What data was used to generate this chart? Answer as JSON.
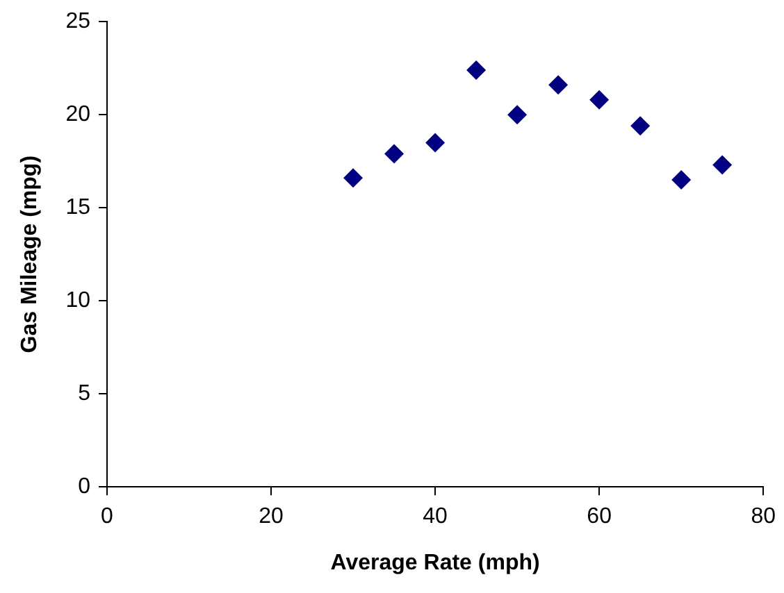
{
  "chart_data": {
    "type": "scatter",
    "xlabel": "Average Rate (mph)",
    "ylabel": "Gas Mileage (mpg)",
    "x": [
      30,
      35,
      40,
      45,
      50,
      55,
      60,
      65,
      70,
      75
    ],
    "series": [
      {
        "color": "#000080",
        "values": [
          16.6,
          17.9,
          18.5,
          22.4,
          20.0,
          21.6,
          20.8,
          19.4,
          16.5,
          17.3
        ]
      }
    ],
    "xlim": [
      0,
      80
    ],
    "xticks": [
      0,
      20,
      40,
      60,
      80
    ],
    "ylim": [
      0,
      25
    ],
    "yticks": [
      0,
      5,
      10,
      15,
      20,
      25
    ],
    "grid": false,
    "legend": false,
    "marker": "diamond"
  }
}
